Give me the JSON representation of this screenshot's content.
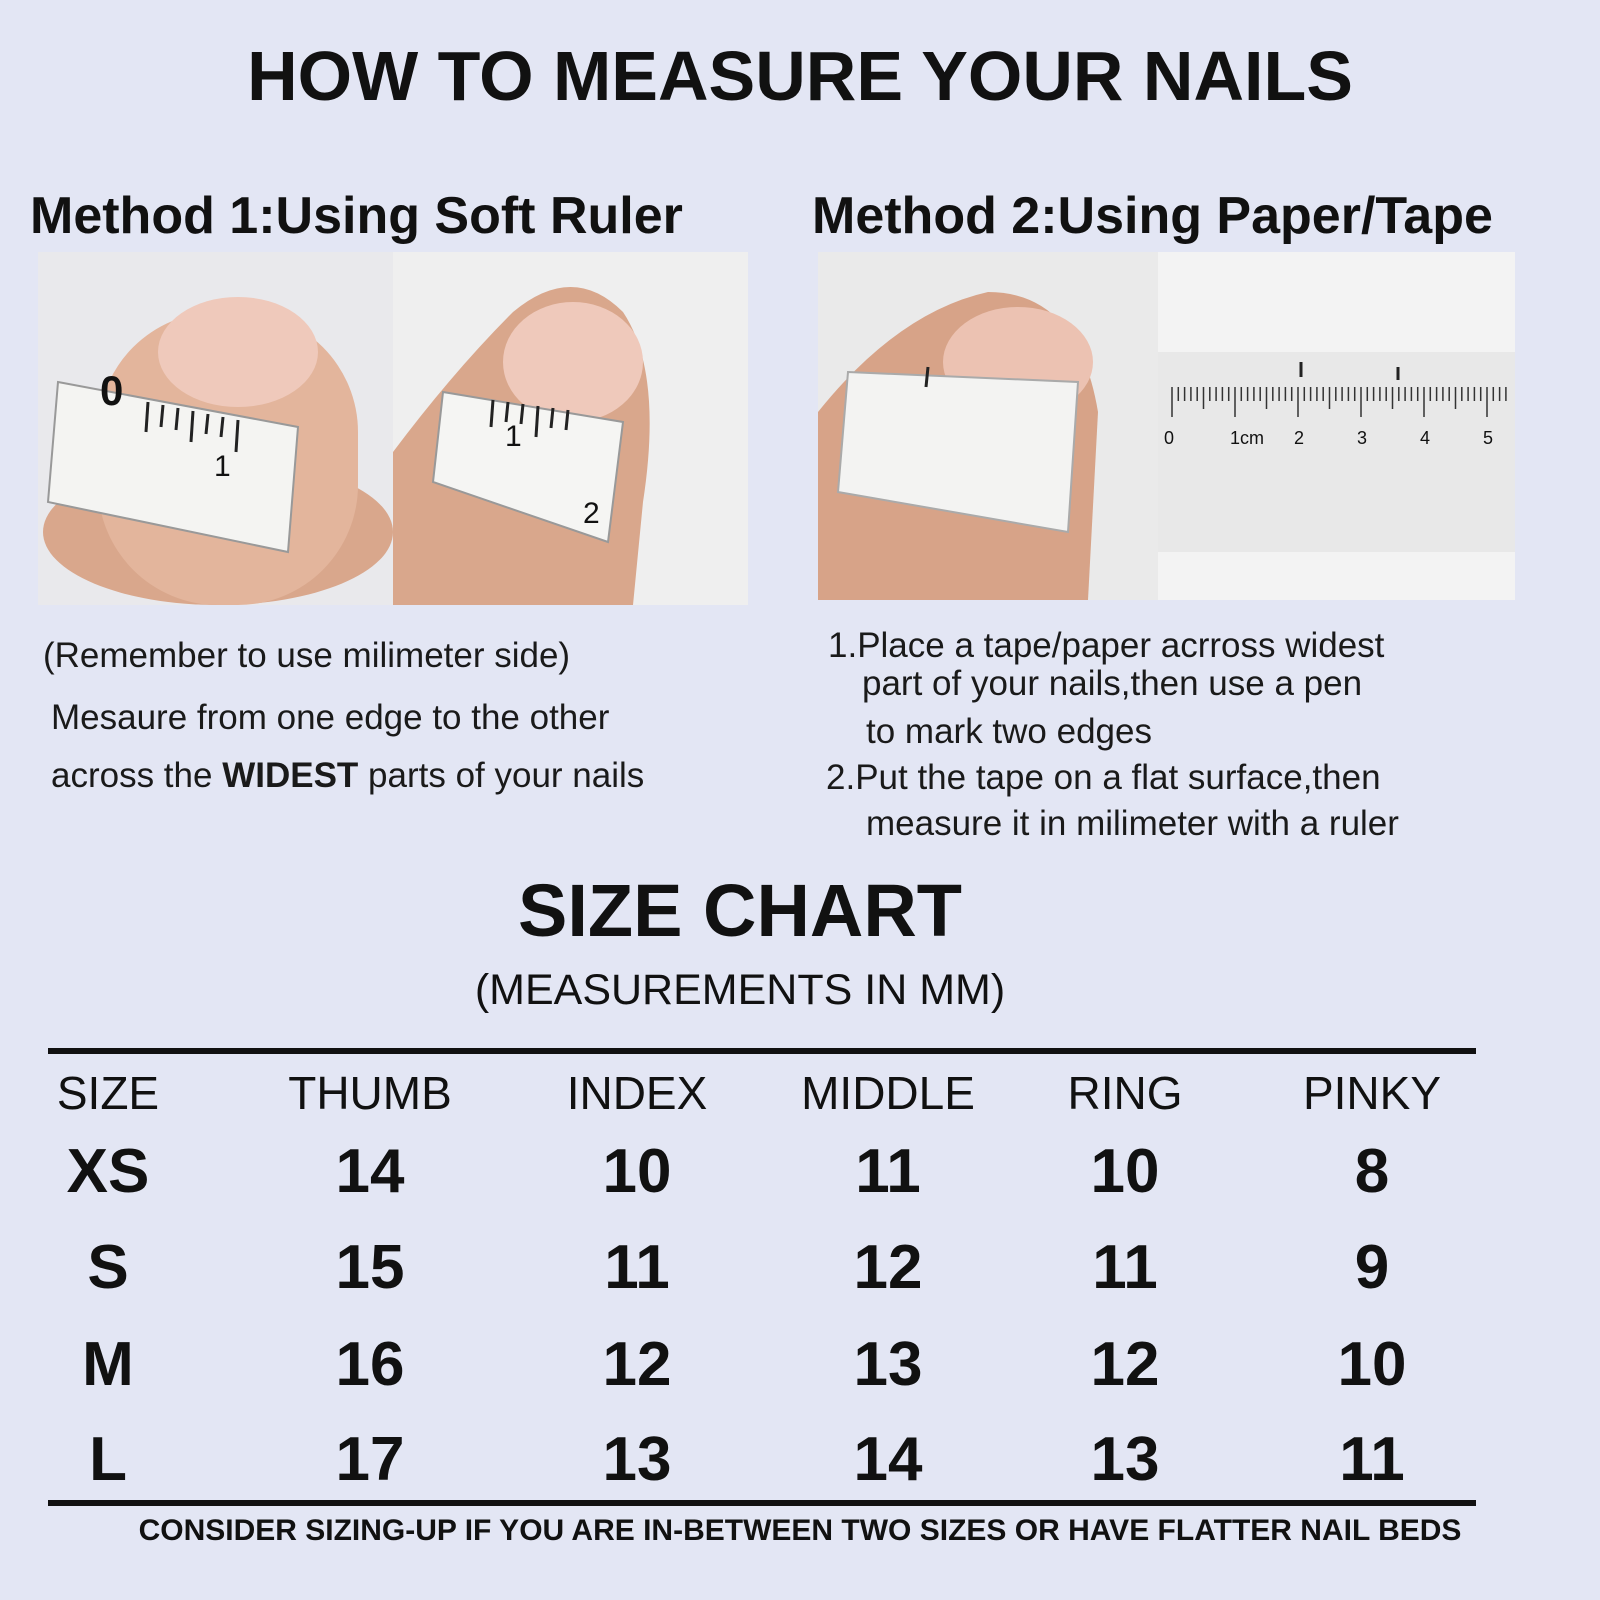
{
  "title": "HOW TO MEASURE YOUR NAILS",
  "method1": {
    "heading": "Method 1:Using Soft Ruler",
    "note": "(Remember to use milimeter side)",
    "line1": "Mesaure from one edge to the other",
    "line2_pre": "across the ",
    "line2_bold": "WIDEST",
    "line2_post": " parts of your nails",
    "tape_labels": [
      "0",
      "1",
      "1",
      "2"
    ]
  },
  "method2": {
    "heading": "Method 2:Using Paper/Tape",
    "step1_a": "1.Place a tape/paper acrross widest",
    "step1_b": "part of your nails,then use a pen",
    "step1_c": "to mark two edges",
    "step2_a": "2.Put the tape on a flat surface,then",
    "step2_b": "measure it in milimeter with a ruler",
    "ruler_labels": [
      "0",
      "1cm",
      "2",
      "3",
      "4",
      "5"
    ]
  },
  "size_chart": {
    "title": "SIZE CHART",
    "subtitle": "(MEASUREMENTS IN MM)",
    "headers": [
      "SIZE",
      "THUMB",
      "INDEX",
      "MIDDLE",
      "RING",
      "PINKY"
    ],
    "rows": [
      [
        "XS",
        "14",
        "10",
        "11",
        "10",
        "8"
      ],
      [
        "S",
        "15",
        "11",
        "12",
        "11",
        "9"
      ],
      [
        "M",
        "16",
        "12",
        "13",
        "12",
        "10"
      ],
      [
        "L",
        "17",
        "13",
        "14",
        "13",
        "11"
      ]
    ]
  },
  "footer": "CONSIDER SIZING-UP IF YOU ARE IN-BETWEEN TWO SIZES OR HAVE FLATTER NAIL BEDS",
  "colors": {
    "background": "#e3e6f4",
    "text": "#111111"
  }
}
